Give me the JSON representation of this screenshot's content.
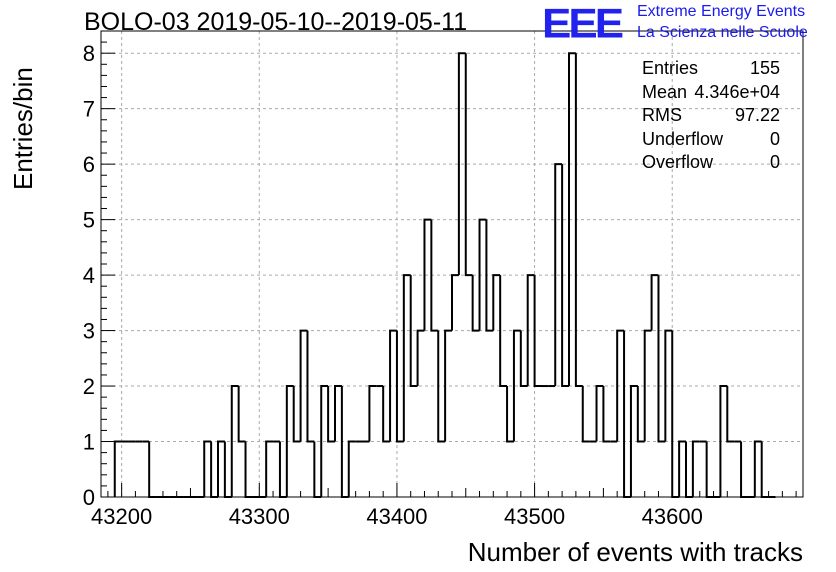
{
  "title": "BOLO-03 2019-05-10--2019-05-11",
  "logo": {
    "letters": "EEE",
    "line1": "Extreme Energy Events",
    "line2": "La Scienza nelle Scuole",
    "color": "#2222ee"
  },
  "stats": [
    {
      "label": "Entries",
      "value": "155"
    },
    {
      "label": "Mean",
      "value": "4.346e+04"
    },
    {
      "label": "RMS",
      "value": "97.22"
    },
    {
      "label": "Underflow",
      "value": "0"
    },
    {
      "label": "Overflow",
      "value": "0"
    }
  ],
  "chart_data": {
    "type": "bar",
    "title": "BOLO-03 2019-05-10--2019-05-11",
    "xlabel": "Number of events with tracks",
    "ylabel": "Entries/bin",
    "xlim": [
      43185,
      43695
    ],
    "ylim": [
      0,
      8.4
    ],
    "bin_width": 5,
    "bin_edges_start": 43195,
    "values": [
      1,
      1,
      1,
      1,
      1,
      0,
      0,
      0,
      0,
      0,
      0,
      0,
      0,
      1,
      0,
      1,
      0,
      2,
      1,
      0,
      0,
      0,
      1,
      1,
      0,
      2,
      1,
      3,
      1,
      0,
      2,
      1,
      2,
      0,
      1,
      1,
      1,
      2,
      2,
      1,
      3,
      1,
      4,
      2,
      3,
      5,
      3,
      1,
      3,
      4,
      8,
      4,
      3,
      5,
      3,
      4,
      2,
      1,
      3,
      2,
      4,
      2,
      2,
      2,
      6,
      2,
      8,
      2,
      1,
      1,
      2,
      1,
      1,
      3,
      0,
      2,
      1,
      3,
      4,
      1,
      3,
      0,
      1,
      0,
      1,
      1,
      0,
      0,
      2,
      1,
      1,
      0,
      0,
      1,
      0,
      0
    ],
    "xticks": [
      43200,
      43300,
      43400,
      43500,
      43600
    ],
    "yticks": [
      0,
      1,
      2,
      3,
      4,
      5,
      6,
      7,
      8
    ],
    "grid": true,
    "line_color": "#000000"
  }
}
